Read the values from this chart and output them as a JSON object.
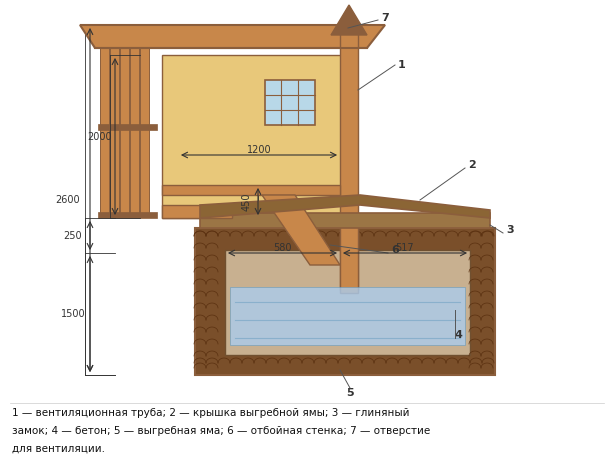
{
  "title": "",
  "background_color": "#ffffff",
  "caption_line1": "1 — вентиляционная труба; 2 — крышка выгребной ямы; 3 — глиняный",
  "caption_line2": "замок; 4 — бетон; 5 — выгребная яма; 6 — отбойная стенка; 7 — отверстие",
  "caption_line3": "для вентиляции.",
  "dim_2600": "2600",
  "dim_2000": "2000",
  "dim_1200": "1200",
  "dim_450": "450",
  "dim_250": "250",
  "dim_1500": "1500",
  "dim_580": "580",
  "dim_517": "517",
  "label_1": "1",
  "label_2": "2",
  "label_3": "3",
  "label_4": "4",
  "label_5": "5",
  "label_6": "6",
  "label_7": "7",
  "wood_color": "#c8874a",
  "wood_dark": "#8B5E3C",
  "wall_color": "#e8c87a",
  "soil_color": "#7a4f2a",
  "water_color": "#aaccee",
  "concrete_color": "#b0a080",
  "line_color": "#222222",
  "dim_color": "#111111"
}
